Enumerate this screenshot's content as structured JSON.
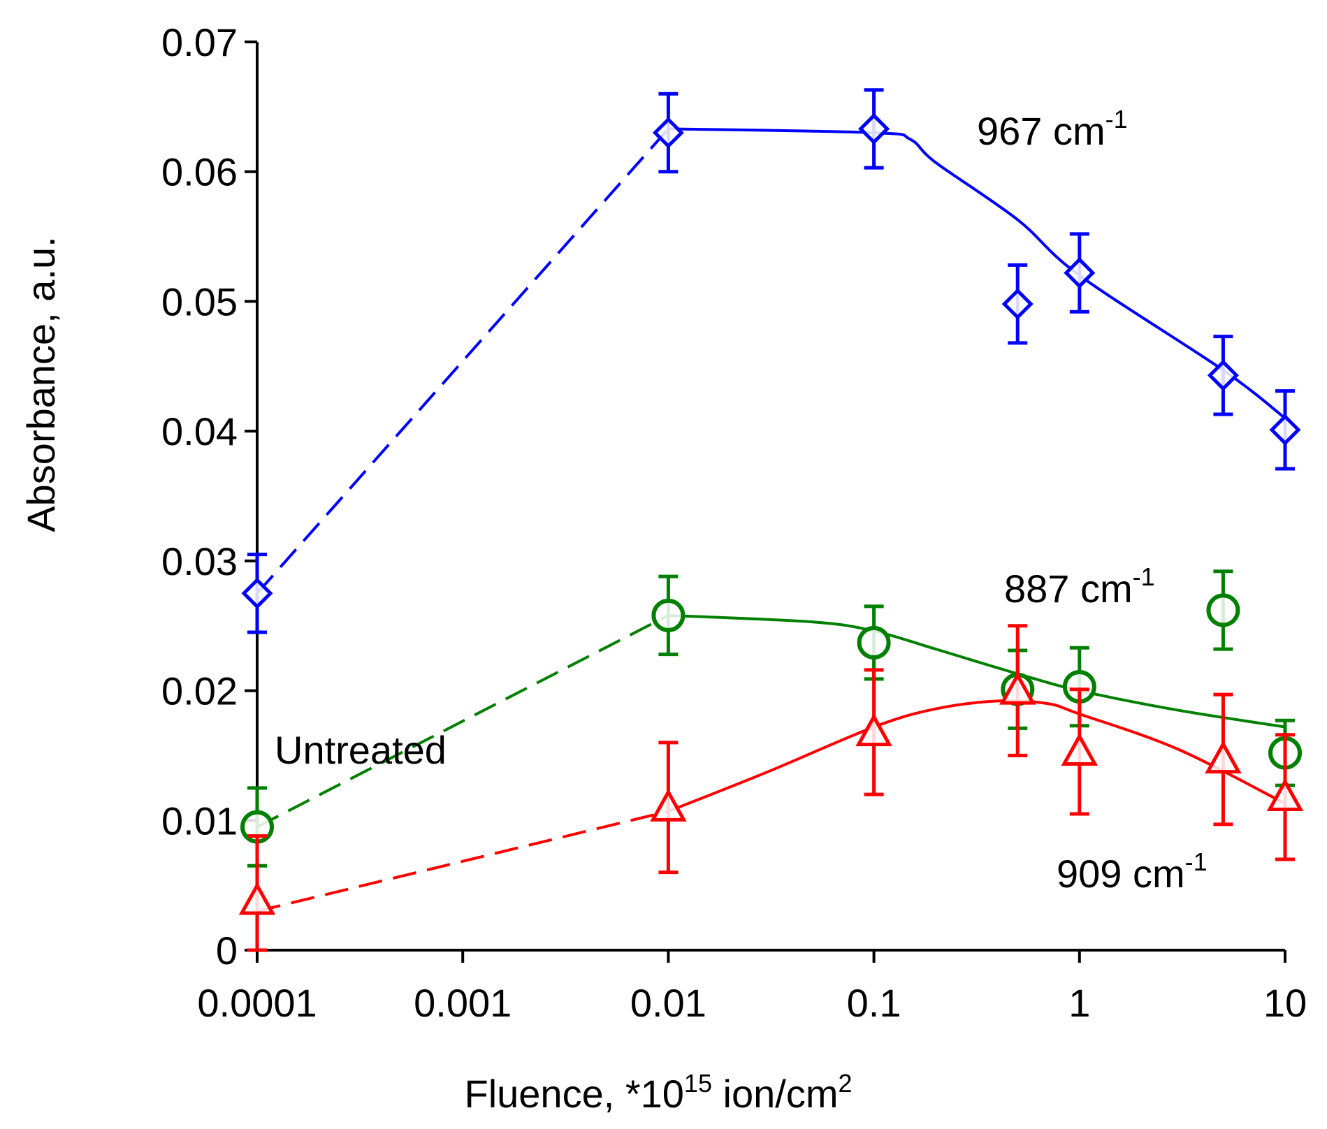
{
  "chart_data": {
    "type": "scatter",
    "title": "",
    "xscale": "log",
    "xlim": [
      0.0001,
      10
    ],
    "ylim": [
      0,
      0.07
    ],
    "xticks": [
      0.0001,
      0.001,
      0.01,
      0.1,
      1,
      10
    ],
    "xtick_labels": [
      "0.0001",
      "0.001",
      "0.01",
      "0.1",
      "1",
      "10"
    ],
    "yticks": [
      0,
      0.01,
      0.02,
      0.03,
      0.04,
      0.05,
      0.06,
      0.07
    ],
    "ytick_labels": [
      "0",
      "0.01",
      "0.02",
      "0.03",
      "0.04",
      "0.05",
      "0.06",
      "0.07"
    ],
    "xlabel_prefix": "Fluence, *10",
    "xlabel_sup1": "15",
    "xlabel_mid": " ion/cm",
    "xlabel_sup2": "2",
    "ylabel": "Absorbance, a.u.",
    "annotation_untreated": "Untreated",
    "series": [
      {
        "name": "967 cm-1",
        "label_main": "967 cm",
        "label_sup": "-1",
        "color": "#0000ff",
        "marker": "diamond",
        "x": [
          0.0001,
          0.01,
          0.1,
          0.5,
          1,
          5,
          10
        ],
        "y": [
          0.0275,
          0.063,
          0.0633,
          0.0498,
          0.0522,
          0.0443,
          0.0401
        ],
        "yerr": [
          0.003,
          0.003,
          0.003,
          0.003,
          0.003,
          0.003,
          0.003
        ],
        "dashed_x": [
          0.0001,
          0.01
        ],
        "dashed_y": [
          0.0275,
          0.0633
        ],
        "curve_x": [
          0.01,
          0.1,
          0.15,
          0.2,
          0.5,
          1,
          5,
          10
        ],
        "curve_y": [
          0.0633,
          0.063,
          0.0625,
          0.0607,
          0.0563,
          0.052,
          0.0447,
          0.041
        ]
      },
      {
        "name": "887 cm-1",
        "label_main": "887 cm",
        "label_sup": "-1",
        "color": "#008000",
        "marker": "circle",
        "x": [
          0.0001,
          0.01,
          0.1,
          0.5,
          1,
          5,
          10
        ],
        "y": [
          0.0095,
          0.0258,
          0.0237,
          0.0201,
          0.0203,
          0.0262,
          0.0152
        ],
        "yerr": [
          0.003,
          0.003,
          0.0028,
          0.003,
          0.003,
          0.003,
          0.0025
        ],
        "dashed_x": [
          0.0001,
          0.01
        ],
        "dashed_y": [
          0.0095,
          0.0258
        ],
        "curve_x": [
          0.01,
          0.05,
          0.1,
          0.2,
          0.5,
          1,
          3,
          10
        ],
        "curve_y": [
          0.0258,
          0.0253,
          0.0246,
          0.0232,
          0.0213,
          0.02,
          0.0185,
          0.0172
        ]
      },
      {
        "name": "909 cm-1",
        "label_main": "909 cm",
        "label_sup": "-1",
        "color": "#ff0000",
        "marker": "triangle",
        "x": [
          0.0001,
          0.01,
          0.1,
          0.5,
          1,
          5,
          10
        ],
        "y": [
          0.0038,
          0.011,
          0.0168,
          0.02,
          0.0153,
          0.0147,
          0.0118
        ],
        "yerr": [
          0.005,
          0.005,
          0.0048,
          0.005,
          0.0048,
          0.005,
          0.0048
        ],
        "dashed_x": [
          0.0001,
          0.01
        ],
        "dashed_y": [
          0.003,
          0.0107
        ],
        "curve_x": [
          0.01,
          0.03,
          0.1,
          0.2,
          0.4,
          0.7,
          1,
          3,
          10
        ],
        "curve_y": [
          0.0107,
          0.0137,
          0.0172,
          0.0186,
          0.0192,
          0.019,
          0.0182,
          0.0155,
          0.0113
        ]
      }
    ]
  }
}
